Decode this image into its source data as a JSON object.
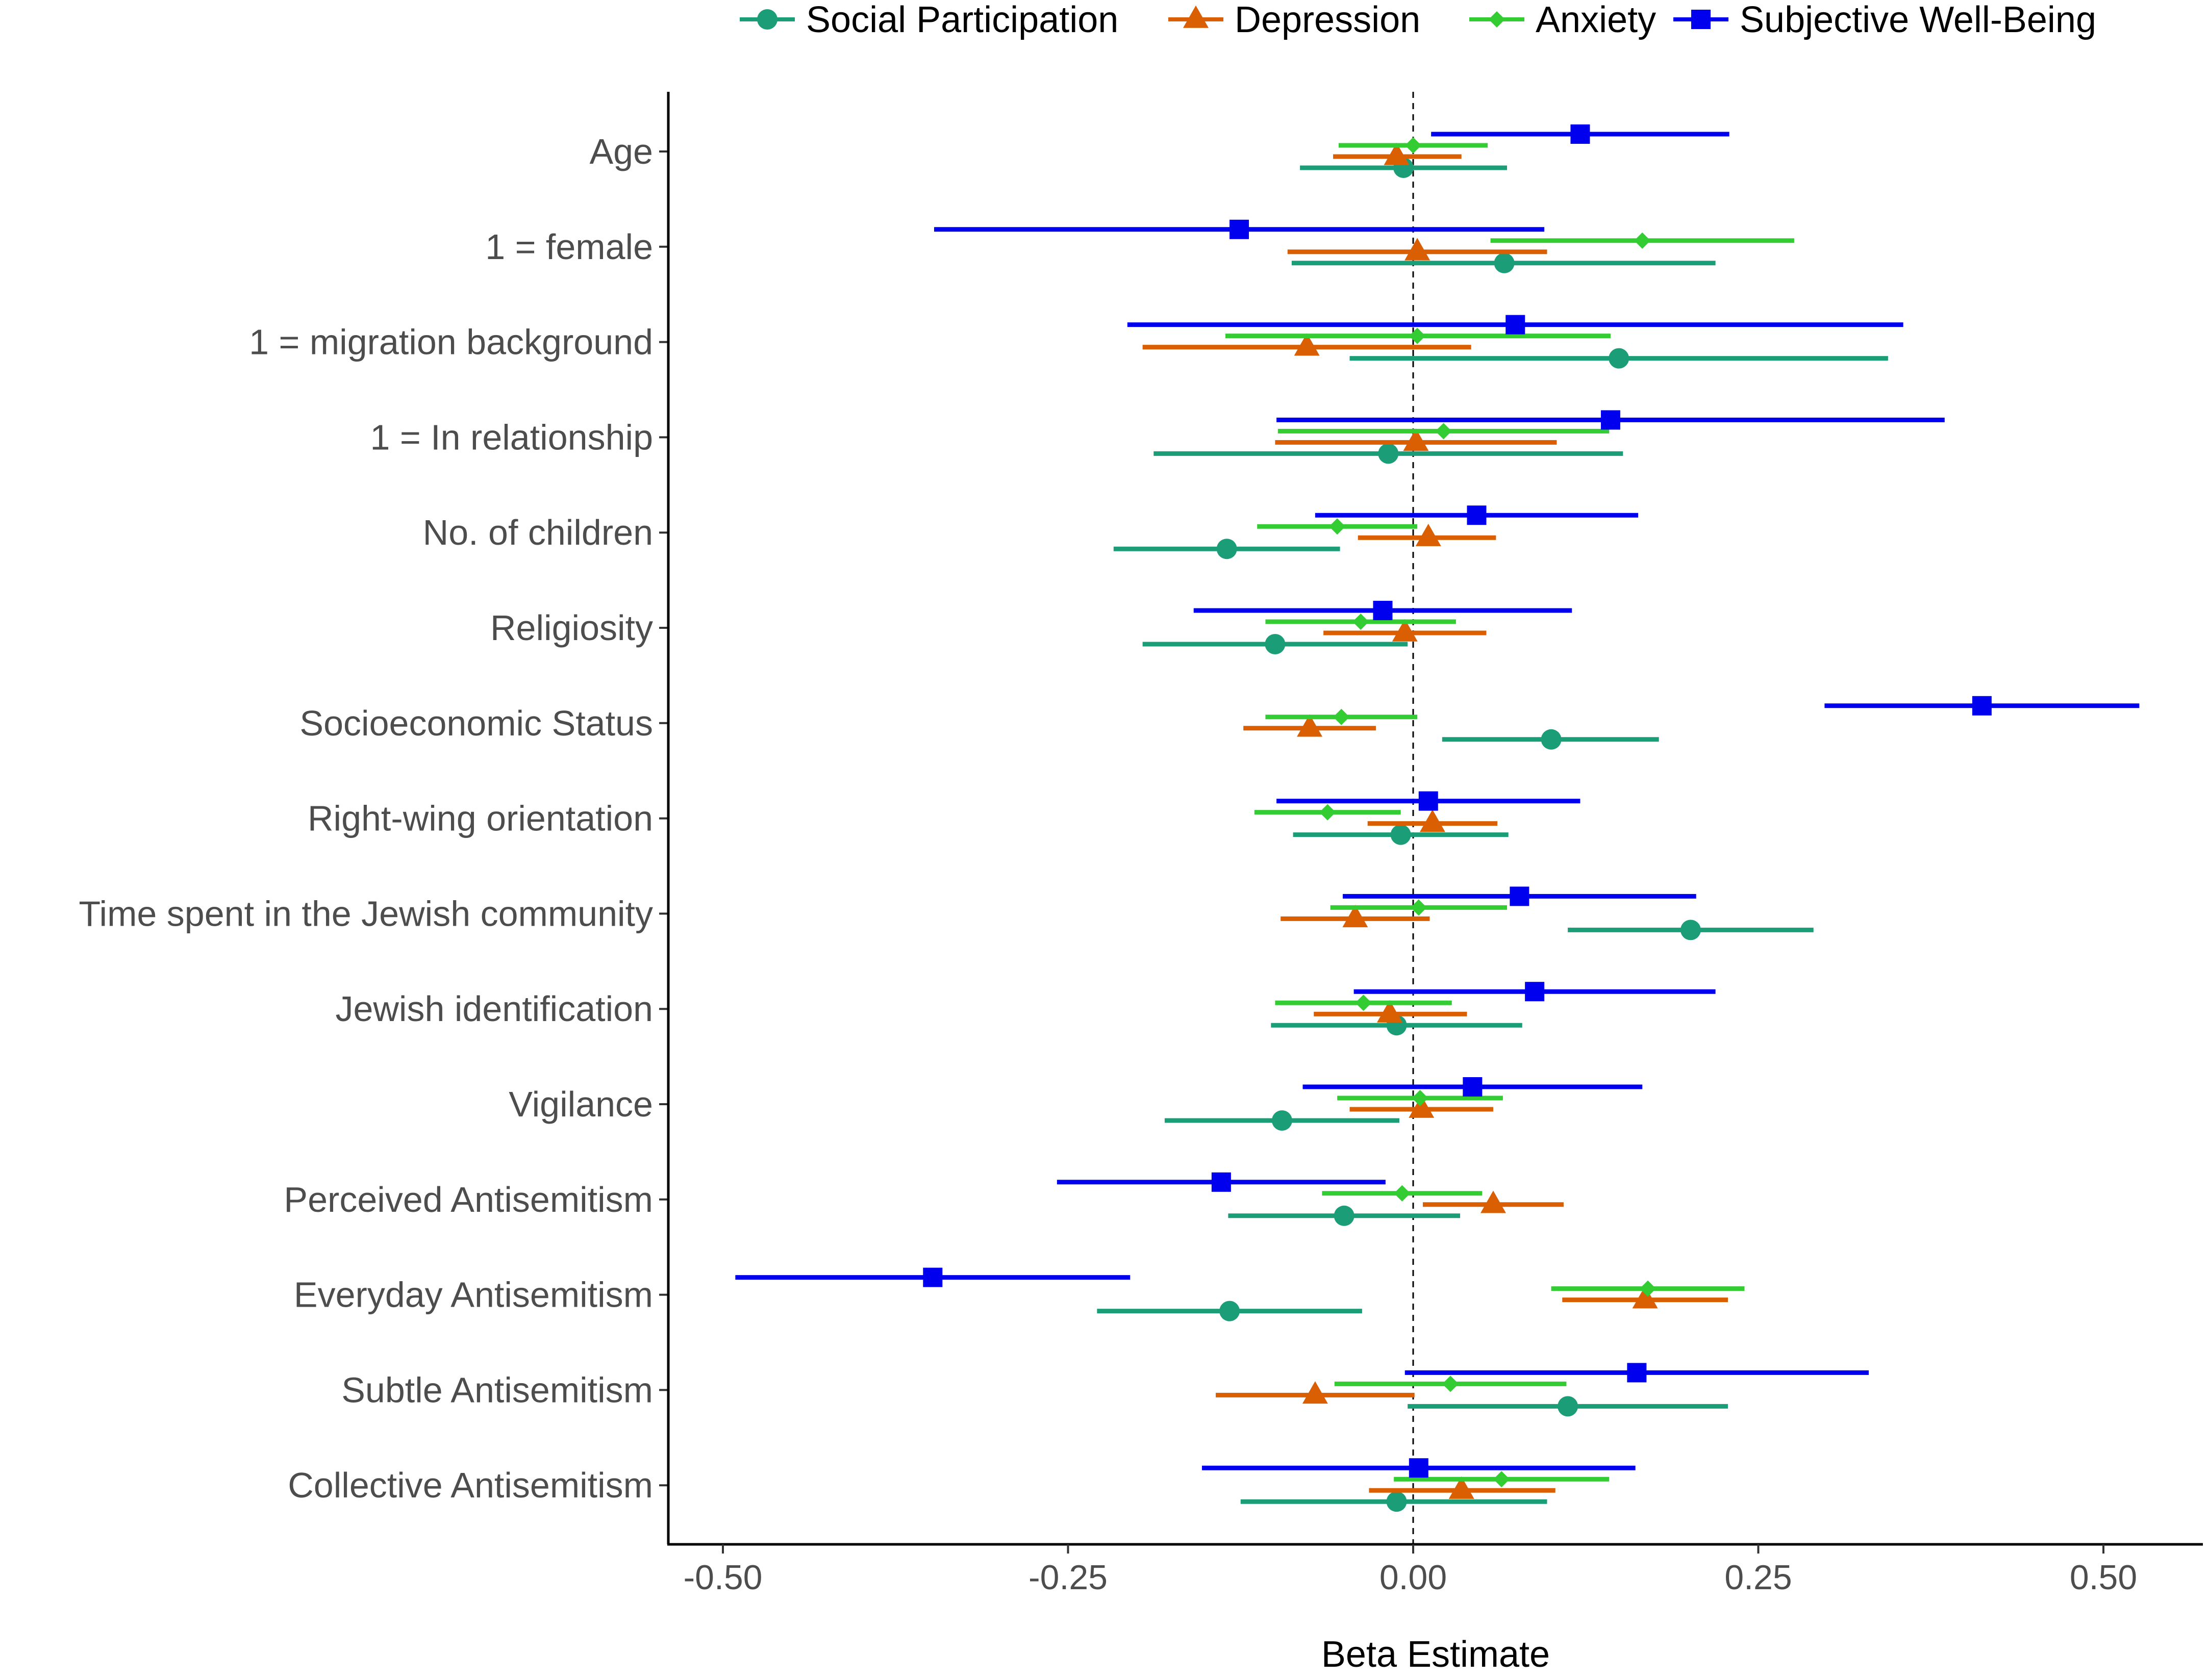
{
  "chart_data": {
    "type": "forest",
    "xlabel": "Beta Estimate",
    "xlim": [
      -0.54,
      0.57
    ],
    "xticks": [
      -0.5,
      -0.25,
      0,
      0.25,
      0.5
    ],
    "xtick_labels": [
      "-0.50",
      "-0.25",
      "0.00",
      "0.25",
      "0.50"
    ],
    "reference_line": 0,
    "legend_position": "top",
    "categories": [
      "Age",
      "1 = female",
      "1 = migration background",
      "1 = In relationship",
      "No. of children",
      "Religiosity",
      "Socioeconomic Status",
      "Right-wing orientation",
      "Time spent in the Jewish community",
      "Jewish identification",
      "Vigilance",
      "Perceived Antisemitism",
      "Everyday Antisemitism",
      "Subtle Antisemitism",
      "Collective Antisemitism"
    ],
    "series": [
      {
        "name": "Social Participation",
        "color": "#1b9e77",
        "marker": "circle",
        "values": [
          {
            "est": -0.007,
            "lo": -0.082,
            "hi": 0.068
          },
          {
            "est": 0.066,
            "lo": -0.088,
            "hi": 0.219
          },
          {
            "est": 0.149,
            "lo": -0.046,
            "hi": 0.344
          },
          {
            "est": -0.018,
            "lo": -0.188,
            "hi": 0.152
          },
          {
            "est": -0.135,
            "lo": -0.217,
            "hi": -0.053
          },
          {
            "est": -0.1,
            "lo": -0.196,
            "hi": -0.004
          },
          {
            "est": 0.1,
            "lo": 0.021,
            "hi": 0.178
          },
          {
            "est": -0.009,
            "lo": -0.087,
            "hi": 0.069
          },
          {
            "est": 0.201,
            "lo": 0.112,
            "hi": 0.29
          },
          {
            "est": -0.012,
            "lo": -0.103,
            "hi": 0.079
          },
          {
            "est": -0.095,
            "lo": -0.18,
            "hi": -0.01
          },
          {
            "est": -0.05,
            "lo": -0.134,
            "hi": 0.034
          },
          {
            "est": -0.133,
            "lo": -0.229,
            "hi": -0.037
          },
          {
            "est": 0.112,
            "lo": -0.004,
            "hi": 0.228
          },
          {
            "est": -0.012,
            "lo": -0.125,
            "hi": 0.097
          }
        ]
      },
      {
        "name": "Depression",
        "color": "#d95f02",
        "marker": "triangle",
        "values": [
          {
            "est": -0.012,
            "lo": -0.058,
            "hi": 0.035
          },
          {
            "est": 0.003,
            "lo": -0.091,
            "hi": 0.097
          },
          {
            "est": -0.077,
            "lo": -0.196,
            "hi": 0.042
          },
          {
            "est": 0.002,
            "lo": -0.1,
            "hi": 0.104
          },
          {
            "est": 0.011,
            "lo": -0.04,
            "hi": 0.06
          },
          {
            "est": -0.006,
            "lo": -0.065,
            "hi": 0.053
          },
          {
            "est": -0.075,
            "lo": -0.123,
            "hi": -0.027
          },
          {
            "est": 0.014,
            "lo": -0.033,
            "hi": 0.061
          },
          {
            "est": -0.042,
            "lo": -0.096,
            "hi": 0.012
          },
          {
            "est": -0.017,
            "lo": -0.072,
            "hi": 0.039
          },
          {
            "est": 0.006,
            "lo": -0.046,
            "hi": 0.058
          },
          {
            "est": 0.058,
            "lo": 0.007,
            "hi": 0.109
          },
          {
            "est": 0.168,
            "lo": 0.108,
            "hi": 0.228
          },
          {
            "est": -0.071,
            "lo": -0.143,
            "hi": 0.001
          },
          {
            "est": 0.035,
            "lo": -0.032,
            "hi": 0.103
          }
        ]
      },
      {
        "name": "Anxiety",
        "color": "#33cc33",
        "marker": "diamond",
        "values": [
          {
            "est": 0.0,
            "lo": -0.054,
            "hi": 0.054
          },
          {
            "est": 0.166,
            "lo": 0.056,
            "hi": 0.276
          },
          {
            "est": 0.003,
            "lo": -0.136,
            "hi": 0.143
          },
          {
            "est": 0.022,
            "lo": -0.098,
            "hi": 0.142
          },
          {
            "est": -0.055,
            "lo": -0.113,
            "hi": 0.003
          },
          {
            "est": -0.038,
            "lo": -0.107,
            "hi": 0.031
          },
          {
            "est": -0.052,
            "lo": -0.107,
            "hi": 0.003
          },
          {
            "est": -0.062,
            "lo": -0.115,
            "hi": -0.009
          },
          {
            "est": 0.004,
            "lo": -0.06,
            "hi": 0.068
          },
          {
            "est": -0.036,
            "lo": -0.1,
            "hi": 0.028
          },
          {
            "est": 0.005,
            "lo": -0.055,
            "hi": 0.065
          },
          {
            "est": -0.008,
            "lo": -0.066,
            "hi": 0.05
          },
          {
            "est": 0.17,
            "lo": 0.1,
            "hi": 0.24
          },
          {
            "est": 0.027,
            "lo": -0.057,
            "hi": 0.111
          },
          {
            "est": 0.064,
            "lo": -0.014,
            "hi": 0.142
          }
        ]
      },
      {
        "name": "Subjective Well-Being",
        "color": "#0000ee",
        "marker": "square",
        "values": [
          {
            "est": 0.121,
            "lo": 0.013,
            "hi": 0.229
          },
          {
            "est": -0.126,
            "lo": -0.347,
            "hi": 0.095
          },
          {
            "est": 0.074,
            "lo": -0.207,
            "hi": 0.355
          },
          {
            "est": 0.143,
            "lo": -0.099,
            "hi": 0.385
          },
          {
            "est": 0.046,
            "lo": -0.071,
            "hi": 0.163
          },
          {
            "est": -0.022,
            "lo": -0.159,
            "hi": 0.115
          },
          {
            "est": 0.412,
            "lo": 0.298,
            "hi": 0.526
          },
          {
            "est": 0.011,
            "lo": -0.099,
            "hi": 0.121
          },
          {
            "est": 0.077,
            "lo": -0.051,
            "hi": 0.205
          },
          {
            "est": 0.088,
            "lo": -0.043,
            "hi": 0.219
          },
          {
            "est": 0.043,
            "lo": -0.08,
            "hi": 0.166
          },
          {
            "est": -0.139,
            "lo": -0.258,
            "hi": -0.02
          },
          {
            "est": -0.348,
            "lo": -0.491,
            "hi": -0.205
          },
          {
            "est": 0.162,
            "lo": -0.006,
            "hi": 0.33
          },
          {
            "est": 0.004,
            "lo": -0.153,
            "hi": 0.161
          }
        ]
      }
    ]
  }
}
